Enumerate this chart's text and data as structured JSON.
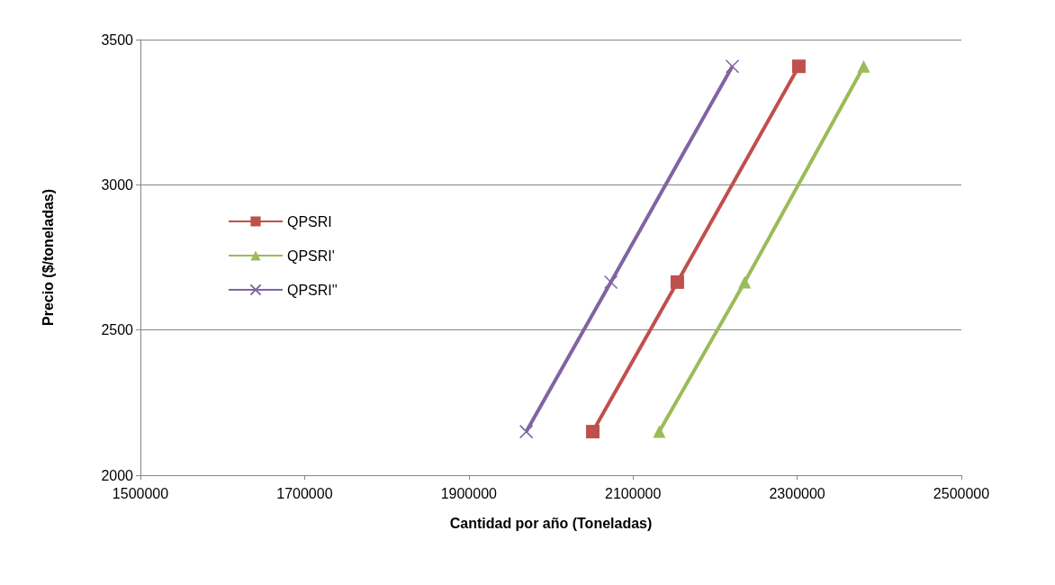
{
  "chart_data": {
    "type": "line",
    "xlabel": "Cantidad por año (Toneladas)",
    "ylabel": "Precio ($/toneladas)",
    "xlim": [
      1500000,
      2500000
    ],
    "xticks": [
      1500000,
      1700000,
      1900000,
      2100000,
      2300000,
      2500000
    ],
    "ylim": [
      2000,
      3500
    ],
    "yticks": [
      2000,
      2500,
      3000,
      3500
    ],
    "grid": "y",
    "legend": "left",
    "series": [
      {
        "name": "QPSRI",
        "color": "#c0504d",
        "marker": "square",
        "x": [
          2051000,
          2154000,
          2302000
        ],
        "values": [
          2150,
          2665,
          3408
        ]
      },
      {
        "name": "QPSRI'",
        "color": "#9bbb59",
        "marker": "triangle",
        "x": [
          2132000,
          2236000,
          2381000
        ],
        "values": [
          2150,
          2665,
          3408
        ]
      },
      {
        "name": "QPSRI''",
        "color": "#8064a2",
        "marker": "cross",
        "x": [
          1970000,
          2073000,
          2221000
        ],
        "values": [
          2150,
          2665,
          3408
        ]
      }
    ]
  }
}
